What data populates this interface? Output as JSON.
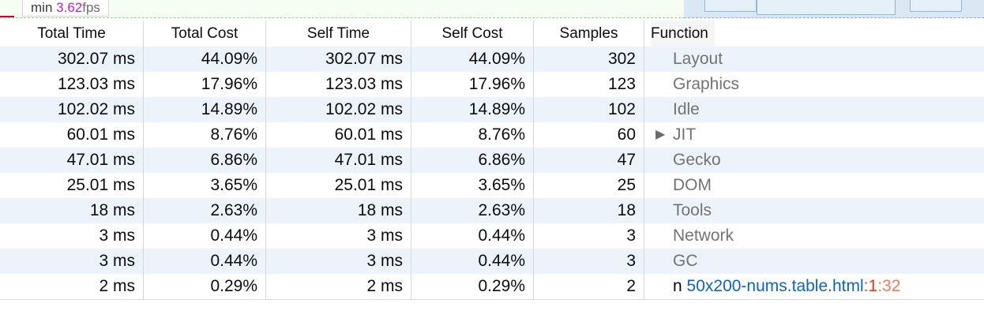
{
  "fps": {
    "prefix": "min",
    "value": "3.62",
    "unit": "fps"
  },
  "columns": [
    "Total Time",
    "Total Cost",
    "Self Time",
    "Self Cost",
    "Samples",
    "Function"
  ],
  "rows": [
    {
      "total_time": "302.07 ms",
      "total_cost": "44.09%",
      "self_time": "302.07 ms",
      "self_cost": "44.09%",
      "samples": "302",
      "function": "Layout",
      "expandable": false
    },
    {
      "total_time": "123.03 ms",
      "total_cost": "17.96%",
      "self_time": "123.03 ms",
      "self_cost": "17.96%",
      "samples": "123",
      "function": "Graphics",
      "expandable": false
    },
    {
      "total_time": "102.02 ms",
      "total_cost": "14.89%",
      "self_time": "102.02 ms",
      "self_cost": "14.89%",
      "samples": "102",
      "function": "Idle",
      "expandable": false
    },
    {
      "total_time": "60.01 ms",
      "total_cost": "8.76%",
      "self_time": "60.01 ms",
      "self_cost": "8.76%",
      "samples": "60",
      "function": "JIT",
      "expandable": true,
      "twisty": "▶"
    },
    {
      "total_time": "47.01 ms",
      "total_cost": "6.86%",
      "self_time": "47.01 ms",
      "self_cost": "6.86%",
      "samples": "47",
      "function": "Gecko",
      "expandable": false
    },
    {
      "total_time": "25.01 ms",
      "total_cost": "3.65%",
      "self_time": "25.01 ms",
      "self_cost": "3.65%",
      "samples": "25",
      "function": "DOM",
      "expandable": false
    },
    {
      "total_time": "18 ms",
      "total_cost": "2.63%",
      "self_time": "18 ms",
      "self_cost": "2.63%",
      "samples": "18",
      "function": "Tools",
      "expandable": false
    },
    {
      "total_time": "3 ms",
      "total_cost": "0.44%",
      "self_time": "3 ms",
      "self_cost": "0.44%",
      "samples": "3",
      "function": "Network",
      "expandable": false
    },
    {
      "total_time": "3 ms",
      "total_cost": "0.44%",
      "self_time": "3 ms",
      "self_cost": "0.44%",
      "samples": "3",
      "function": "GC",
      "expandable": false
    },
    {
      "total_time": "2 ms",
      "total_cost": "0.29%",
      "self_time": "2 ms",
      "self_cost": "0.29%",
      "samples": "2",
      "function": "n",
      "expandable": false,
      "source": {
        "file": "50x200-nums.table.html",
        "sep1": ":",
        "line": "1",
        "sep2": ":",
        "column": "32"
      }
    }
  ],
  "colors": {
    "fps_value": "#c11fc1",
    "row_alt": "#edf3fb",
    "source_link": "#0a63c9",
    "source_line": "#dd3c11",
    "source_column": "#ef7a50",
    "category_text": "#737373"
  },
  "icons": {
    "twisty": "disclosure-triangle-icon"
  }
}
